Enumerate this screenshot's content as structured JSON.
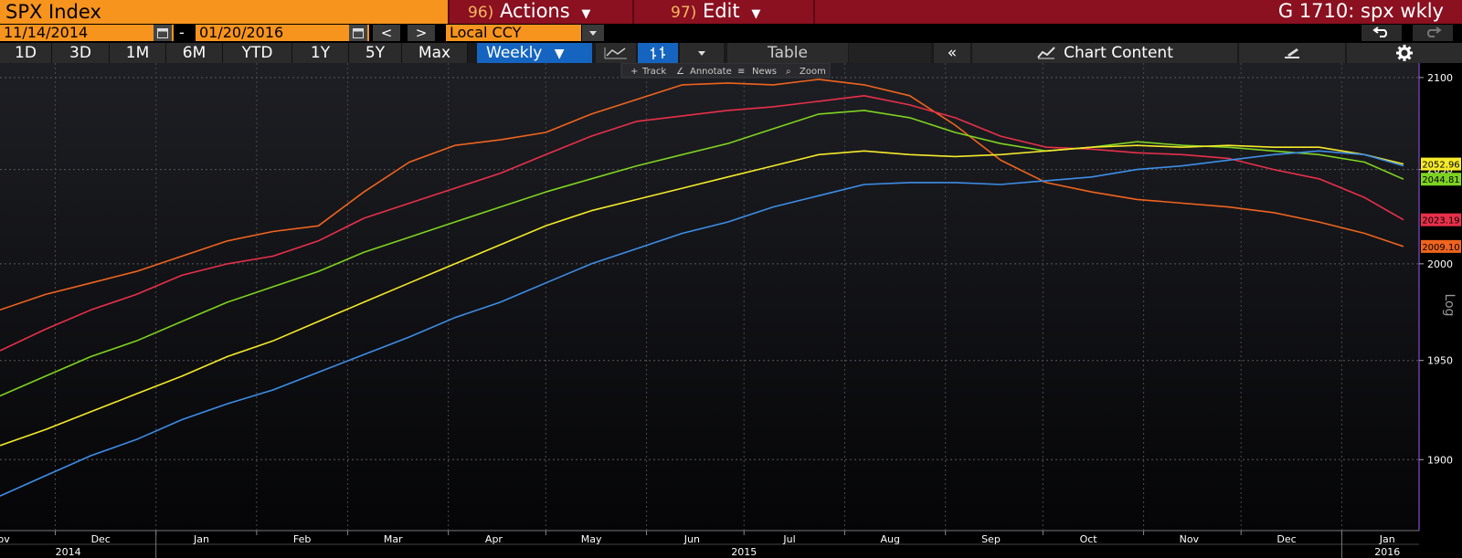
{
  "header": {
    "ticker": "SPX Index",
    "actions_num": "96)",
    "actions_label": "Actions",
    "edit_num": "97)",
    "edit_label": "Edit",
    "page_title": "G 1710: spx wkly"
  },
  "date_range": {
    "start": "11/14/2014",
    "end": "01/20/2016",
    "separator": "-",
    "prev": "<",
    "next": ">"
  },
  "currency": "Local CCY",
  "periods": [
    "1D",
    "3D",
    "1M",
    "6M",
    "YTD",
    "1Y",
    "5Y",
    "Max"
  ],
  "frequency": "Weekly",
  "toolbar": {
    "table_label": "Table",
    "collapse_label": "«",
    "chart_content_label": "Chart Content"
  },
  "subtools": [
    "Track",
    "Annotate",
    "News",
    "Zoom"
  ],
  "colors": {
    "orange": "#f0641e",
    "red": "#e8304a",
    "green": "#7ed321",
    "yellow": "#f5ea2a",
    "blue": "#3d8ee8"
  },
  "chart_data": {
    "type": "line",
    "yscale": "log",
    "yaxis_label": "Log",
    "ylim": [
      1865,
      2108
    ],
    "yticks": [
      2100,
      2050,
      2000,
      1950,
      1900
    ],
    "xlim": [
      "2014-11-14",
      "2016-01-20"
    ],
    "x_month_labels": [
      {
        "label": "Nov",
        "date": "2014-11-14"
      },
      {
        "label": "Dec",
        "date": "2014-12-15"
      },
      {
        "label": "Jan",
        "date": "2015-01-15"
      },
      {
        "label": "Feb",
        "date": "2015-02-15"
      },
      {
        "label": "Mar",
        "date": "2015-03-15"
      },
      {
        "label": "Apr",
        "date": "2015-04-15"
      },
      {
        "label": "May",
        "date": "2015-05-15"
      },
      {
        "label": "Jun",
        "date": "2015-06-15"
      },
      {
        "label": "Jul",
        "date": "2015-07-15"
      },
      {
        "label": "Aug",
        "date": "2015-08-15"
      },
      {
        "label": "Sep",
        "date": "2015-09-15"
      },
      {
        "label": "Oct",
        "date": "2015-10-15"
      },
      {
        "label": "Nov",
        "date": "2015-11-15"
      },
      {
        "label": "Dec",
        "date": "2015-12-15"
      },
      {
        "label": "Jan",
        "date": "2016-01-15"
      }
    ],
    "x_year_labels": [
      {
        "label": "2014",
        "date": "2014-12-05"
      },
      {
        "label": "2015",
        "date": "2015-07-01"
      },
      {
        "label": "2016",
        "date": "2016-01-15"
      }
    ],
    "x_month_gridlines": [
      "2014-12-01",
      "2015-01-01",
      "2015-02-01",
      "2015-03-01",
      "2015-04-01",
      "2015-05-01",
      "2015-06-01",
      "2015-07-01",
      "2015-08-01",
      "2015-09-01",
      "2015-10-01",
      "2015-11-01",
      "2015-12-01",
      "2016-01-01"
    ],
    "x_year_gridlines": [
      "2015-01-01",
      "2016-01-01"
    ],
    "series": [
      {
        "color_key": "orange",
        "last_value": "2009.10",
        "points": [
          [
            "2014-11-14",
            1976
          ],
          [
            "2014-11-28",
            1984
          ],
          [
            "2014-12-12",
            1990
          ],
          [
            "2014-12-26",
            1996
          ],
          [
            "2015-01-09",
            2004
          ],
          [
            "2015-01-23",
            2012
          ],
          [
            "2015-02-06",
            2017
          ],
          [
            "2015-02-20",
            2020
          ],
          [
            "2015-03-06",
            2038
          ],
          [
            "2015-03-20",
            2054
          ],
          [
            "2015-04-03",
            2063
          ],
          [
            "2015-04-17",
            2066
          ],
          [
            "2015-05-01",
            2070
          ],
          [
            "2015-05-15",
            2080
          ],
          [
            "2015-05-29",
            2088
          ],
          [
            "2015-06-12",
            2096
          ],
          [
            "2015-06-26",
            2097
          ],
          [
            "2015-07-10",
            2096
          ],
          [
            "2015-07-24",
            2099
          ],
          [
            "2015-08-07",
            2096
          ],
          [
            "2015-08-21",
            2090
          ],
          [
            "2015-09-04",
            2074
          ],
          [
            "2015-09-18",
            2055
          ],
          [
            "2015-10-02",
            2043
          ],
          [
            "2015-10-16",
            2038
          ],
          [
            "2015-10-30",
            2034
          ],
          [
            "2015-11-13",
            2032
          ],
          [
            "2015-11-27",
            2030
          ],
          [
            "2015-12-11",
            2027
          ],
          [
            "2015-12-25",
            2022
          ],
          [
            "2016-01-08",
            2016
          ],
          [
            "2016-01-20",
            2009.1
          ]
        ]
      },
      {
        "color_key": "red",
        "last_value": "2023.19",
        "points": [
          [
            "2014-11-14",
            1955
          ],
          [
            "2014-11-28",
            1966
          ],
          [
            "2014-12-12",
            1976
          ],
          [
            "2014-12-26",
            1984
          ],
          [
            "2015-01-09",
            1994
          ],
          [
            "2015-01-23",
            2000
          ],
          [
            "2015-02-06",
            2004
          ],
          [
            "2015-02-20",
            2012
          ],
          [
            "2015-03-06",
            2024
          ],
          [
            "2015-03-20",
            2032
          ],
          [
            "2015-04-03",
            2040
          ],
          [
            "2015-04-17",
            2048
          ],
          [
            "2015-05-01",
            2058
          ],
          [
            "2015-05-15",
            2068
          ],
          [
            "2015-05-29",
            2076
          ],
          [
            "2015-06-12",
            2079
          ],
          [
            "2015-06-26",
            2082
          ],
          [
            "2015-07-10",
            2084
          ],
          [
            "2015-07-24",
            2087
          ],
          [
            "2015-08-07",
            2090
          ],
          [
            "2015-08-21",
            2085
          ],
          [
            "2015-09-04",
            2078
          ],
          [
            "2015-09-18",
            2068
          ],
          [
            "2015-10-02",
            2062
          ],
          [
            "2015-10-16",
            2061
          ],
          [
            "2015-10-30",
            2059
          ],
          [
            "2015-11-13",
            2058
          ],
          [
            "2015-11-27",
            2056
          ],
          [
            "2015-12-11",
            2050
          ],
          [
            "2015-12-25",
            2045
          ],
          [
            "2016-01-08",
            2035
          ],
          [
            "2016-01-20",
            2023.19
          ]
        ]
      },
      {
        "color_key": "green",
        "last_value": "2044.81",
        "points": [
          [
            "2014-11-14",
            1932
          ],
          [
            "2014-11-28",
            1942
          ],
          [
            "2014-12-12",
            1952
          ],
          [
            "2014-12-26",
            1960
          ],
          [
            "2015-01-09",
            1970
          ],
          [
            "2015-01-23",
            1980
          ],
          [
            "2015-02-06",
            1988
          ],
          [
            "2015-02-20",
            1996
          ],
          [
            "2015-03-06",
            2006
          ],
          [
            "2015-03-20",
            2014
          ],
          [
            "2015-04-03",
            2022
          ],
          [
            "2015-04-17",
            2030
          ],
          [
            "2015-05-01",
            2038
          ],
          [
            "2015-05-15",
            2045
          ],
          [
            "2015-05-29",
            2052
          ],
          [
            "2015-06-12",
            2058
          ],
          [
            "2015-06-26",
            2064
          ],
          [
            "2015-07-10",
            2072
          ],
          [
            "2015-07-24",
            2080
          ],
          [
            "2015-08-07",
            2082
          ],
          [
            "2015-08-21",
            2078
          ],
          [
            "2015-09-04",
            2070
          ],
          [
            "2015-09-18",
            2064
          ],
          [
            "2015-10-02",
            2060
          ],
          [
            "2015-10-16",
            2062
          ],
          [
            "2015-10-30",
            2065
          ],
          [
            "2015-11-13",
            2063
          ],
          [
            "2015-11-27",
            2062
          ],
          [
            "2015-12-11",
            2060
          ],
          [
            "2015-12-25",
            2058
          ],
          [
            "2016-01-08",
            2054
          ],
          [
            "2016-01-20",
            2044.81
          ]
        ]
      },
      {
        "color_key": "yellow",
        "last_value": "2052.96",
        "points": [
          [
            "2014-11-14",
            1907
          ],
          [
            "2014-11-28",
            1915
          ],
          [
            "2014-12-12",
            1924
          ],
          [
            "2014-12-26",
            1933
          ],
          [
            "2015-01-09",
            1942
          ],
          [
            "2015-01-23",
            1952
          ],
          [
            "2015-02-06",
            1960
          ],
          [
            "2015-02-20",
            1970
          ],
          [
            "2015-03-06",
            1980
          ],
          [
            "2015-03-20",
            1990
          ],
          [
            "2015-04-03",
            2000
          ],
          [
            "2015-04-17",
            2010
          ],
          [
            "2015-05-01",
            2020
          ],
          [
            "2015-05-15",
            2028
          ],
          [
            "2015-05-29",
            2034
          ],
          [
            "2015-06-12",
            2040
          ],
          [
            "2015-06-26",
            2046
          ],
          [
            "2015-07-10",
            2052
          ],
          [
            "2015-07-24",
            2058
          ],
          [
            "2015-08-07",
            2060
          ],
          [
            "2015-08-21",
            2058
          ],
          [
            "2015-09-04",
            2057
          ],
          [
            "2015-09-18",
            2058
          ],
          [
            "2015-10-02",
            2060
          ],
          [
            "2015-10-16",
            2062
          ],
          [
            "2015-10-30",
            2063
          ],
          [
            "2015-11-13",
            2062
          ],
          [
            "2015-11-27",
            2063
          ],
          [
            "2015-12-11",
            2062
          ],
          [
            "2015-12-25",
            2062
          ],
          [
            "2016-01-08",
            2058
          ],
          [
            "2016-01-20",
            2052.96
          ]
        ]
      },
      {
        "color_key": "blue",
        "last_value": "",
        "points": [
          [
            "2014-11-14",
            1882
          ],
          [
            "2014-11-28",
            1892
          ],
          [
            "2014-12-12",
            1902
          ],
          [
            "2014-12-26",
            1910
          ],
          [
            "2015-01-09",
            1920
          ],
          [
            "2015-01-23",
            1928
          ],
          [
            "2015-02-06",
            1935
          ],
          [
            "2015-02-20",
            1944
          ],
          [
            "2015-03-06",
            1953
          ],
          [
            "2015-03-20",
            1962
          ],
          [
            "2015-04-03",
            1972
          ],
          [
            "2015-04-17",
            1980
          ],
          [
            "2015-05-01",
            1990
          ],
          [
            "2015-05-15",
            2000
          ],
          [
            "2015-05-29",
            2008
          ],
          [
            "2015-06-12",
            2016
          ],
          [
            "2015-06-26",
            2022
          ],
          [
            "2015-07-10",
            2030
          ],
          [
            "2015-07-24",
            2036
          ],
          [
            "2015-08-07",
            2042
          ],
          [
            "2015-08-21",
            2043
          ],
          [
            "2015-09-04",
            2043
          ],
          [
            "2015-09-18",
            2042
          ],
          [
            "2015-10-02",
            2044
          ],
          [
            "2015-10-16",
            2046
          ],
          [
            "2015-10-30",
            2050
          ],
          [
            "2015-11-13",
            2052
          ],
          [
            "2015-11-27",
            2055
          ],
          [
            "2015-12-11",
            2058
          ],
          [
            "2015-12-25",
            2060
          ],
          [
            "2016-01-08",
            2058
          ],
          [
            "2016-01-20",
            2052
          ]
        ]
      }
    ]
  }
}
